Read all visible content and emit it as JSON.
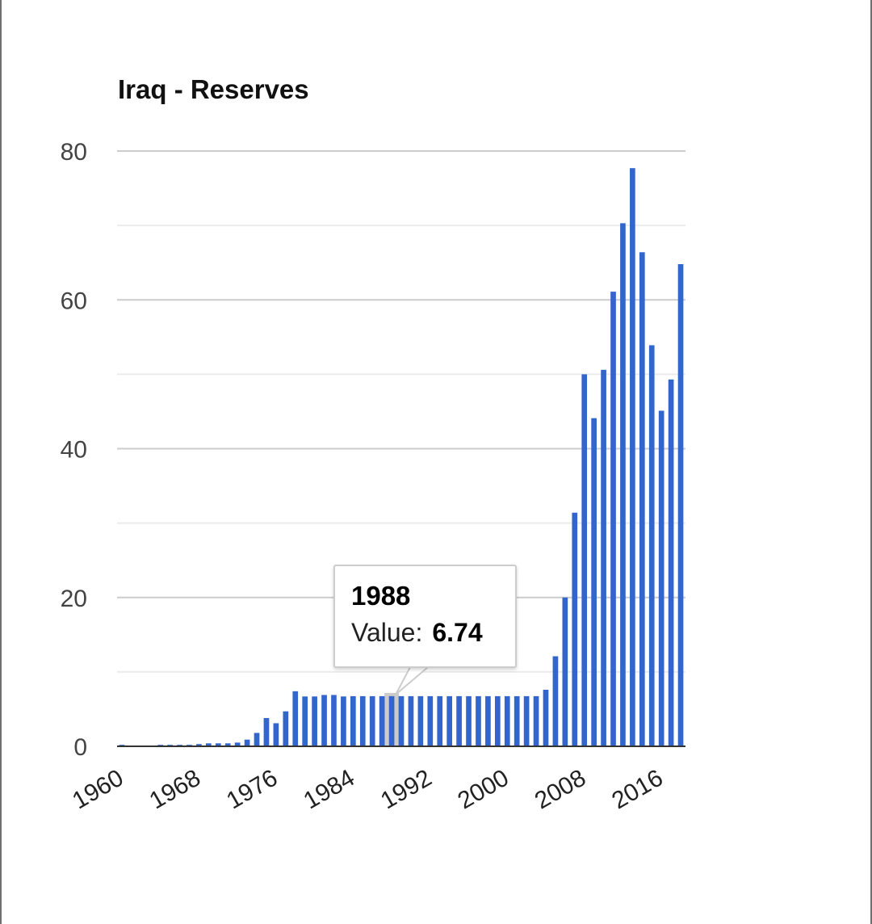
{
  "chart_data": {
    "type": "bar",
    "title": "Iraq - Reserves",
    "xlabel": "",
    "ylabel": "",
    "ylim": [
      0,
      80
    ],
    "yticks": [
      0,
      20,
      40,
      60,
      80
    ],
    "xticks": [
      "1960",
      "1968",
      "1976",
      "1984",
      "1992",
      "2000",
      "2008",
      "2016"
    ],
    "grid": true,
    "color": "#3366cc",
    "categories": [
      1960,
      1961,
      1962,
      1963,
      1964,
      1965,
      1966,
      1967,
      1968,
      1969,
      1970,
      1971,
      1972,
      1973,
      1974,
      1975,
      1976,
      1977,
      1978,
      1979,
      1980,
      1981,
      1982,
      1983,
      1984,
      1985,
      1986,
      1987,
      1988,
      1989,
      1990,
      1991,
      1992,
      1993,
      1994,
      1995,
      1996,
      1997,
      1998,
      1999,
      2000,
      2001,
      2002,
      2003,
      2004,
      2005,
      2006,
      2007,
      2008,
      2009,
      2010,
      2011,
      2012,
      2013,
      2014,
      2015,
      2016,
      2017,
      2018
    ],
    "values": [
      0.2,
      0.1,
      0.1,
      0.1,
      0.2,
      0.2,
      0.2,
      0.2,
      0.3,
      0.4,
      0.4,
      0.4,
      0.5,
      0.9,
      1.8,
      3.8,
      3.1,
      4.7,
      7.4,
      6.7,
      6.7,
      6.9,
      6.9,
      6.7,
      6.74,
      6.74,
      6.74,
      6.74,
      6.74,
      6.74,
      6.74,
      6.74,
      6.74,
      6.74,
      6.74,
      6.74,
      6.74,
      6.74,
      6.74,
      6.74,
      6.74,
      6.74,
      6.74,
      6.74,
      7.6,
      12.1,
      20.0,
      31.4,
      50.0,
      44.1,
      50.6,
      61.1,
      70.3,
      77.7,
      66.4,
      53.9,
      45.1,
      49.3,
      64.8
    ],
    "tooltip": {
      "year": "1988",
      "label": "Value:",
      "value": "6.74"
    }
  }
}
